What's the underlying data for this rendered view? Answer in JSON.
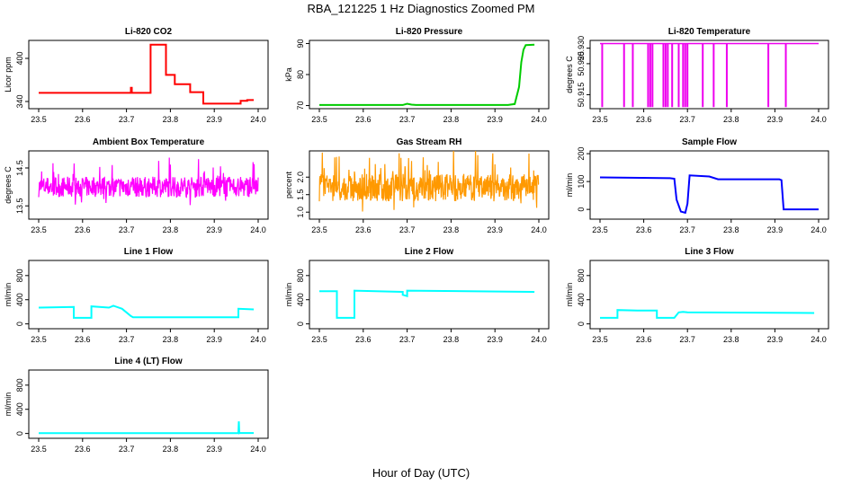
{
  "figure": {
    "title": "RBA_121225  1 Hz Diagnostics Zoomed PM",
    "xlabel": "Hour of Day (UTC)"
  },
  "chart_data": [
    {
      "type": "line",
      "title": "Li-820 CO2",
      "ylabel": "Licor ppm",
      "color": "#ff0000",
      "xlim": [
        23.5,
        24.0
      ],
      "ylim": [
        330,
        425
      ],
      "xticks": [
        "23.5",
        "23.6",
        "23.7",
        "23.8",
        "23.9",
        "24.0"
      ],
      "yticks": [
        340,
        400
      ],
      "x": [
        23.5,
        23.71,
        23.71,
        23.712,
        23.712,
        23.755,
        23.755,
        23.79,
        23.79,
        23.81,
        23.81,
        23.845,
        23.845,
        23.875,
        23.875,
        23.96,
        23.96,
        23.975,
        23.975,
        23.99
      ],
      "y": [
        352,
        352,
        359,
        359,
        352,
        352,
        419,
        419,
        377,
        377,
        364,
        364,
        353,
        353,
        337,
        337,
        341,
        341,
        342,
        342
      ]
    },
    {
      "type": "line",
      "title": "Li-820 Pressure",
      "ylabel": "kPa",
      "color": "#00cc00",
      "xlim": [
        23.5,
        24.0
      ],
      "ylim": [
        69,
        91
      ],
      "xticks": [
        "23.5",
        "23.6",
        "23.7",
        "23.8",
        "23.9",
        "24.0"
      ],
      "yticks": [
        70,
        80,
        90
      ],
      "x": [
        23.5,
        23.69,
        23.7,
        23.71,
        23.72,
        23.93,
        23.945,
        23.955,
        23.96,
        23.965,
        23.97,
        23.99
      ],
      "y": [
        70.2,
        70.2,
        70.6,
        70.3,
        70.2,
        70.2,
        70.5,
        76,
        84,
        88,
        89.5,
        89.6
      ]
    },
    {
      "type": "spikes",
      "title": "Li-820 Temperature",
      "ylabel": "degrees C",
      "color": "#ee00ee",
      "xlim": [
        23.5,
        24.0
      ],
      "ylim": [
        50.9105,
        50.9325
      ],
      "xticks": [
        "23.5",
        "23.6",
        "23.7",
        "23.8",
        "23.9",
        "24.0"
      ],
      "yticks": [
        "50.915",
        "50.925",
        "50.930"
      ],
      "baseline": 50.9315,
      "low": 50.911,
      "spikes": [
        23.505,
        23.555,
        23.575,
        23.61,
        23.615,
        23.62,
        23.645,
        23.65,
        23.655,
        23.665,
        23.68,
        23.69,
        23.695,
        23.7,
        23.735,
        23.76,
        23.79,
        23.885,
        23.925
      ]
    },
    {
      "type": "noise",
      "title": "Ambient Box Temperature",
      "ylabel": "degrees C",
      "color": "#ff00ff",
      "xlim": [
        23.5,
        24.0
      ],
      "ylim": [
        13.15,
        14.95
      ],
      "xticks": [
        "23.5",
        "23.6",
        "23.7",
        "23.8",
        "23.9",
        "24.0"
      ],
      "yticks": [
        13.5,
        14.5
      ],
      "center": 14.0,
      "spread": 0.45,
      "seed": 7
    },
    {
      "type": "noise",
      "title": "Gas Stream RH",
      "ylabel": "percent",
      "color": "#ff9900",
      "xlim": [
        23.5,
        24.0
      ],
      "ylim": [
        0.8,
        2.75
      ],
      "xticks": [
        "23.5",
        "23.6",
        "23.7",
        "23.8",
        "23.9",
        "24.0"
      ],
      "yticks": [
        "1.0",
        "1.5",
        "2.0"
      ],
      "center": 1.7,
      "spread": 0.65,
      "seed": 13
    },
    {
      "type": "line",
      "title": "Sample Flow",
      "ylabel": "ml/min",
      "color": "#0000ff",
      "xlim": [
        23.5,
        24.0
      ],
      "ylim": [
        -35,
        210
      ],
      "xticks": [
        "23.5",
        "23.6",
        "23.7",
        "23.8",
        "23.9",
        "24.0"
      ],
      "yticks": [
        0,
        100,
        200
      ],
      "x": [
        23.5,
        23.66,
        23.67,
        23.675,
        23.685,
        23.695,
        23.7,
        23.705,
        23.75,
        23.77,
        23.91,
        23.915,
        23.92,
        24.0
      ],
      "y": [
        115,
        112,
        110,
        35,
        -8,
        -12,
        20,
        122,
        118,
        108,
        108,
        105,
        0,
        0
      ]
    },
    {
      "type": "line",
      "title": "Line 1 Flow",
      "ylabel": "ml/min",
      "color": "#00ffff",
      "xlim": [
        23.5,
        24.0
      ],
      "ylim": [
        -80,
        1050
      ],
      "xticks": [
        "23.5",
        "23.6",
        "23.7",
        "23.8",
        "23.9",
        "24.0"
      ],
      "yticks": [
        0,
        400,
        800
      ],
      "x": [
        23.5,
        23.58,
        23.58,
        23.62,
        23.62,
        23.66,
        23.67,
        23.69,
        23.71,
        23.715,
        23.95,
        23.955,
        23.955,
        23.99
      ],
      "y": [
        270,
        280,
        100,
        100,
        290,
        270,
        300,
        250,
        130,
        110,
        110,
        110,
        250,
        240
      ]
    },
    {
      "type": "line",
      "title": "Line 2 Flow",
      "ylabel": "ml/min",
      "color": "#00ffff",
      "xlim": [
        23.5,
        24.0
      ],
      "ylim": [
        -80,
        1050
      ],
      "xticks": [
        "23.5",
        "23.6",
        "23.7",
        "23.8",
        "23.9",
        "24.0"
      ],
      "yticks": [
        0,
        400,
        800
      ],
      "x": [
        23.5,
        23.54,
        23.54,
        23.58,
        23.58,
        23.69,
        23.69,
        23.7,
        23.7,
        23.99
      ],
      "y": [
        540,
        540,
        100,
        100,
        550,
        530,
        480,
        460,
        550,
        530
      ]
    },
    {
      "type": "line",
      "title": "Line 3 Flow",
      "ylabel": "ml/min",
      "color": "#00ffff",
      "xlim": [
        23.5,
        24.0
      ],
      "ylim": [
        -80,
        1050
      ],
      "xticks": [
        "23.5",
        "23.6",
        "23.7",
        "23.8",
        "23.9",
        "24.0"
      ],
      "yticks": [
        0,
        400,
        800
      ],
      "x": [
        23.5,
        23.54,
        23.54,
        23.585,
        23.63,
        23.63,
        23.67,
        23.68,
        23.69,
        23.7,
        23.99
      ],
      "y": [
        100,
        100,
        230,
        220,
        220,
        100,
        100,
        190,
        200,
        190,
        180
      ]
    },
    {
      "type": "line",
      "title": "Line 4 (LT) Flow",
      "ylabel": "ml/min",
      "color": "#00ffff",
      "xlim": [
        23.5,
        24.0
      ],
      "ylim": [
        -80,
        1050
      ],
      "xticks": [
        "23.5",
        "23.6",
        "23.7",
        "23.8",
        "23.9",
        "24.0"
      ],
      "yticks": [
        0,
        400,
        800
      ],
      "x": [
        23.5,
        23.955,
        23.956,
        23.957,
        23.958,
        23.99
      ],
      "y": [
        5,
        5,
        200,
        5,
        8,
        8
      ]
    }
  ]
}
